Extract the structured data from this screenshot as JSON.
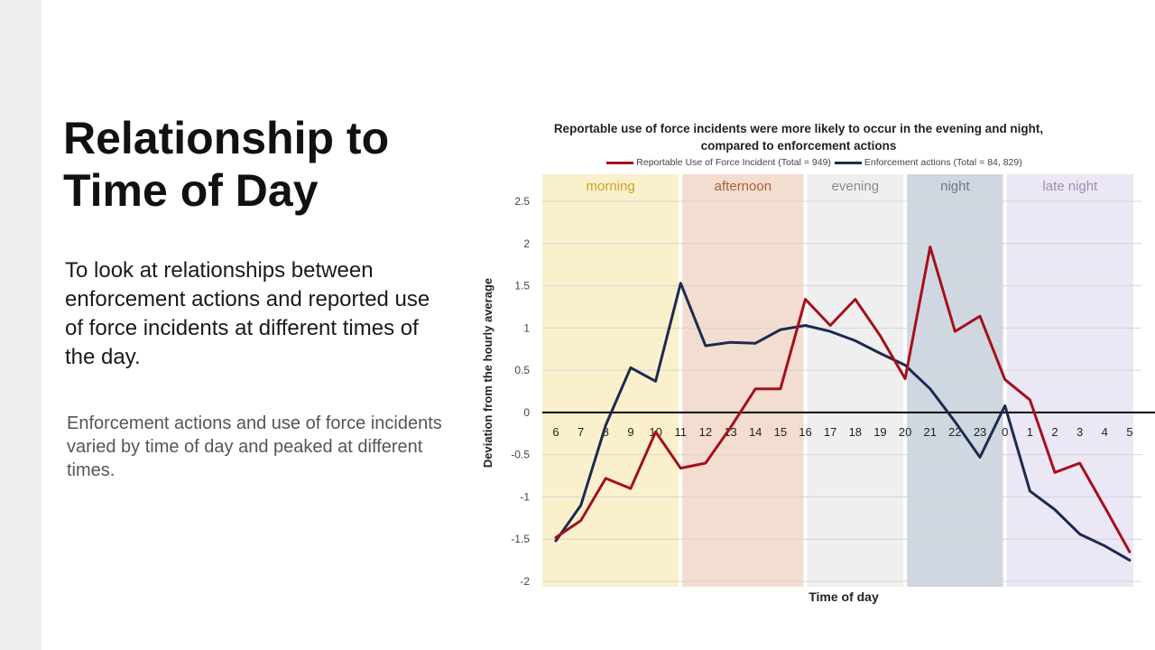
{
  "slide": {
    "title": "Relationship to Time of Day",
    "lead": "To look at relationships between enforcement actions and reported use of force incidents at different times of the day.",
    "body": "Enforcement actions and use of force incidents varied by time of day and peaked at different times."
  },
  "colors": {
    "uof": "#a50f1c",
    "enforcement": "#1c2b4f",
    "morning": "#faf1cc",
    "afternoon": "#f2ddd0",
    "evening": "#efefef",
    "night": "#cfd8e0",
    "late_night": "#ece7f5"
  },
  "chart_data": {
    "type": "line",
    "title": "Reportable use of force incidents were more likely to occur in the evening and night, compared to enforcement actions",
    "title_lines": [
      "Reportable use of force incidents were more likely to occur in the evening and night,",
      "compared to enforcement actions"
    ],
    "xlabel": "Time of day",
    "ylabel": "Deviation from the hourly average",
    "legend_position": "top",
    "ylim": [
      -2,
      2.5
    ],
    "y_ticks": [
      "2.5",
      "2",
      "1.5",
      "1",
      "0.5",
      "0",
      "-0.5",
      "-1",
      "-1.5",
      "-2"
    ],
    "grid": true,
    "categories": [
      "6",
      "7",
      "8",
      "9",
      "10",
      "11",
      "12",
      "13",
      "14",
      "15",
      "16",
      "17",
      "18",
      "19",
      "20",
      "21",
      "22",
      "23",
      "0",
      "1",
      "2",
      "3",
      "4",
      "5"
    ],
    "periods": [
      {
        "label": "morning",
        "start": "6",
        "end": "11",
        "color": "#faf1cc",
        "label_color": "#c9a227"
      },
      {
        "label": "afternoon",
        "start": "11",
        "end": "16",
        "color": "#f2ddd0",
        "label_color": "#a9613a"
      },
      {
        "label": "evening",
        "start": "16",
        "end": "20",
        "color": "#efefef",
        "label_color": "#8a8a8a"
      },
      {
        "label": "night",
        "start": "20",
        "end": "0",
        "color": "#cfd8e0",
        "label_color": "#6e7a86"
      },
      {
        "label": "late night",
        "start": "0",
        "end": "5",
        "color": "#ece7f5",
        "label_color": "#9b8fb3"
      }
    ],
    "series": [
      {
        "name": "Reportable Use of Force Incident (Total = 949)",
        "color": "#a50f1c",
        "values": [
          -1.48,
          -1.28,
          -0.78,
          -0.9,
          -0.23,
          -0.66,
          -0.6,
          -0.18,
          0.28,
          0.28,
          1.34,
          1.03,
          1.34,
          0.91,
          0.4,
          1.96,
          0.96,
          1.14,
          0.39,
          0.15,
          -0.71,
          -0.6,
          -1.12,
          -1.65
        ]
      },
      {
        "name": "Enforcement actions (Total = 84, 829)",
        "color": "#1c2b4f",
        "values": [
          -1.52,
          -1.1,
          -0.15,
          0.53,
          0.37,
          1.53,
          0.79,
          0.83,
          0.82,
          0.98,
          1.03,
          0.96,
          0.85,
          0.7,
          0.56,
          0.28,
          -0.11,
          -0.53,
          0.08,
          -0.93,
          -1.15,
          -1.44,
          -1.58,
          -1.75
        ]
      }
    ]
  }
}
